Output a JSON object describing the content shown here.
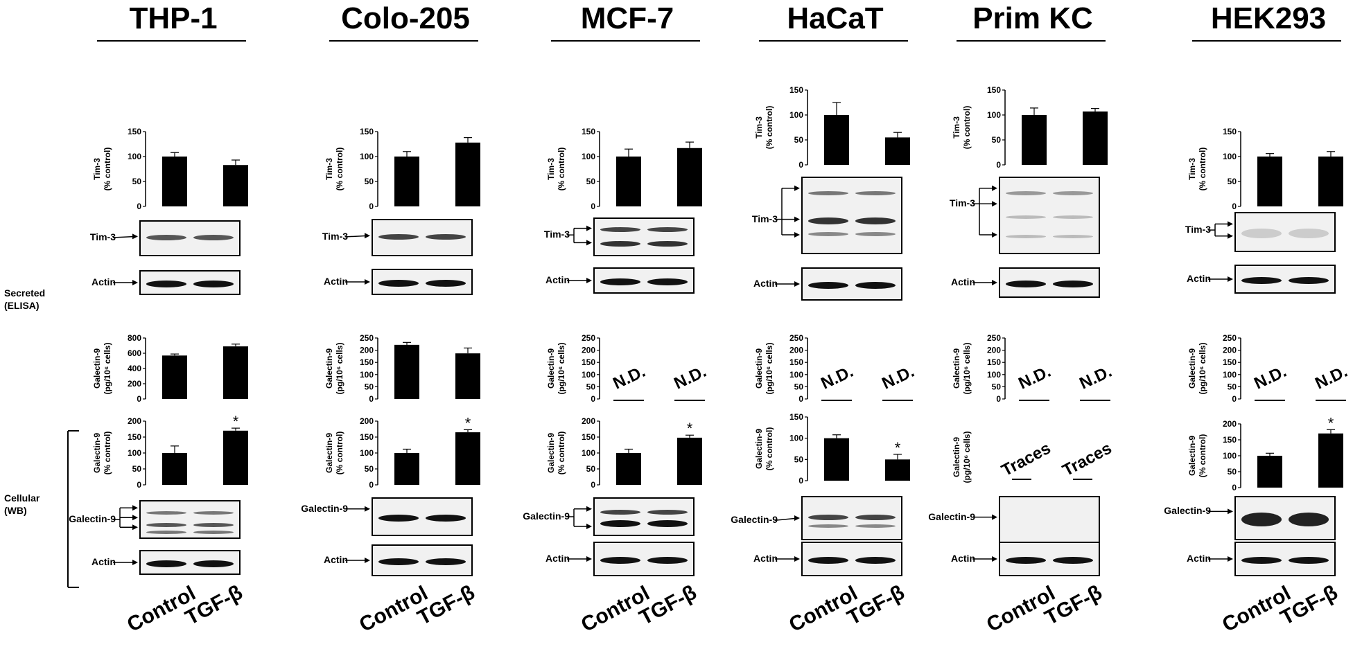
{
  "panels": [
    {
      "cell_line": "THP-1",
      "tim3_chart": {
        "ylabel": [
          "Tim-3",
          "(% control)"
        ],
        "ylim": [
          0,
          150
        ],
        "ticks": [
          "0",
          "50",
          "100",
          "150"
        ],
        "values": [
          100,
          83
        ],
        "errors": [
          8,
          10
        ]
      },
      "tim3_blot_label": "Tim-3",
      "actin_label_1": "Actin",
      "secreted_chart": {
        "ylabel": [
          "Galectin-9",
          "(pg/10⁶ cells)"
        ],
        "ylim": [
          0,
          800
        ],
        "ticks": [
          "0",
          "200",
          "400",
          "600",
          "800"
        ],
        "values": [
          570,
          690
        ],
        "errors": [
          20,
          30
        ]
      },
      "cellular_chart": {
        "ylabel": [
          "Galectin-9",
          "(% control)"
        ],
        "ylim": [
          0,
          200
        ],
        "ticks": [
          "0",
          "50",
          "100",
          "150",
          "200"
        ],
        "values": [
          100,
          170
        ],
        "errors": [
          22,
          8
        ],
        "significance": [
          "",
          "*"
        ]
      },
      "gal9_blot_label": "Galectin-9",
      "actin_label_2": "Actin"
    },
    {
      "cell_line": "Colo-205",
      "tim3_chart": {
        "ylabel": [
          "Tim-3",
          "(% control)"
        ],
        "ylim": [
          0,
          150
        ],
        "ticks": [
          "0",
          "50",
          "100",
          "150"
        ],
        "values": [
          100,
          128
        ],
        "errors": [
          10,
          10
        ]
      },
      "tim3_blot_label": "Tim-3",
      "actin_label_1": "Actin",
      "secreted_chart": {
        "ylabel": [
          "Galectin-9",
          "(pg/10⁶ cells)"
        ],
        "ylim": [
          0,
          250
        ],
        "ticks": [
          "0",
          "50",
          "100",
          "150",
          "200",
          "250"
        ],
        "values": [
          222,
          187
        ],
        "errors": [
          10,
          22
        ]
      },
      "cellular_chart": {
        "ylabel": [
          "Galectin-9",
          "(% control)"
        ],
        "ylim": [
          0,
          200
        ],
        "ticks": [
          "0",
          "50",
          "100",
          "150",
          "200"
        ],
        "values": [
          100,
          165
        ],
        "errors": [
          12,
          8
        ],
        "significance": [
          "",
          "*"
        ]
      },
      "gal9_blot_label": "Galectin-9",
      "actin_label_2": "Actin"
    },
    {
      "cell_line": "MCF-7",
      "tim3_chart": {
        "ylabel": [
          "Tim-3",
          "(% control)"
        ],
        "ylim": [
          0,
          150
        ],
        "ticks": [
          "0",
          "50",
          "100",
          "150"
        ],
        "values": [
          100,
          117
        ],
        "errors": [
          15,
          12
        ]
      },
      "tim3_blot_label": "Tim-3",
      "actin_label_1": "Actin",
      "secreted_chart": {
        "ylabel": [
          "Galectin-9",
          "(pg/10⁶ cells)"
        ],
        "ylim": [
          0,
          250
        ],
        "ticks": [
          "0",
          "50",
          "100",
          "150",
          "200",
          "250"
        ],
        "values": [
          null,
          null
        ],
        "annotations": [
          "N.D.",
          "N.D."
        ]
      },
      "cellular_chart": {
        "ylabel": [
          "Galectin-9",
          "(% control)"
        ],
        "ylim": [
          0,
          200
        ],
        "ticks": [
          "0",
          "50",
          "100",
          "150",
          "200"
        ],
        "values": [
          100,
          148
        ],
        "errors": [
          12,
          8
        ],
        "significance": [
          "",
          "*"
        ]
      },
      "gal9_blot_label": "Galectin-9",
      "actin_label_2": "Actin"
    },
    {
      "cell_line": "HaCaT",
      "tim3_chart": {
        "ylabel": [
          "Tim-3",
          "(% control)"
        ],
        "ylim": [
          0,
          150
        ],
        "ticks": [
          "0",
          "50",
          "100",
          "150"
        ],
        "values": [
          100,
          55
        ],
        "errors": [
          25,
          10
        ]
      },
      "tim3_blot_label": "Tim-3",
      "actin_label_1": "Actin",
      "secreted_chart": {
        "ylabel": [
          "Galectin-9",
          "(pg/10⁶ cells)"
        ],
        "ylim": [
          0,
          250
        ],
        "ticks": [
          "0",
          "50",
          "100",
          "150",
          "200",
          "250"
        ],
        "values": [
          null,
          null
        ],
        "annotations": [
          "N.D.",
          "N.D."
        ]
      },
      "cellular_chart": {
        "ylabel": [
          "Galectin-9",
          "(% control)"
        ],
        "ylim": [
          0,
          150
        ],
        "ticks": [
          "0",
          "50",
          "100",
          "150"
        ],
        "values": [
          100,
          50
        ],
        "errors": [
          8,
          12
        ],
        "significance": [
          "",
          "*"
        ]
      },
      "gal9_blot_label": "Galectin-9",
      "actin_label_2": "Actin"
    },
    {
      "cell_line": "Prim KC",
      "tim3_chart": {
        "ylabel": [
          "Tim-3",
          "(% control)"
        ],
        "ylim": [
          0,
          150
        ],
        "ticks": [
          "0",
          "50",
          "100",
          "150"
        ],
        "values": [
          100,
          107
        ],
        "errors": [
          14,
          6
        ]
      },
      "tim3_blot_label": "Tim-3",
      "actin_label_1": "Actin",
      "secreted_chart": {
        "ylabel": [
          "Galectin-9",
          "(pg/10⁶ cells)"
        ],
        "ylim": [
          0,
          250
        ],
        "ticks": [
          "0",
          "50",
          "100",
          "150",
          "200",
          "250"
        ],
        "values": [
          null,
          null
        ],
        "annotations": [
          "N.D.",
          "N.D."
        ]
      },
      "cellular_chart": {
        "ylabel": [
          "Galectin-9",
          "(pg/10⁶ cells)"
        ],
        "values": [
          null,
          null
        ],
        "annotations": [
          "Traces",
          "Traces"
        ]
      },
      "gal9_blot_label": "Galectin-9",
      "actin_label_2": "Actin"
    },
    {
      "cell_line": "HEK293",
      "tim3_chart": {
        "ylabel": [
          "Tim-3",
          "(% control)"
        ],
        "ylim": [
          0,
          150
        ],
        "ticks": [
          "0",
          "50",
          "100",
          "150"
        ],
        "values": [
          100,
          100
        ],
        "errors": [
          6,
          10
        ]
      },
      "tim3_blot_label": "Tim-3",
      "actin_label_1": "Actin",
      "secreted_chart": {
        "ylabel": [
          "Galectin-9",
          "(pg/10⁶ cells)"
        ],
        "ylim": [
          0,
          250
        ],
        "ticks": [
          "0",
          "50",
          "100",
          "150",
          "200",
          "250"
        ],
        "values": [
          null,
          null
        ],
        "annotations": [
          "N.D.",
          "N.D."
        ]
      },
      "cellular_chart": {
        "ylabel": [
          "Galectin-9",
          "(% control)"
        ],
        "ylim": [
          0,
          200
        ],
        "ticks": [
          "0",
          "50",
          "100",
          "150",
          "200"
        ],
        "values": [
          100,
          170
        ],
        "errors": [
          8,
          12
        ],
        "significance": [
          "",
          "*"
        ]
      },
      "gal9_blot_label": "Galectin-9",
      "actin_label_2": "Actin"
    }
  ],
  "row_labels": {
    "secreted": "Secreted",
    "secreted_sub": "(ELISA)",
    "cellular": "Cellular",
    "cellular_sub": "(WB)"
  },
  "x_labels": [
    "Control",
    "TGF-β"
  ],
  "chart_data": [
    {
      "type": "bar",
      "title": "THP-1",
      "ylabel": "Tim-3 (% control)",
      "categories": [
        "Control",
        "TGF-β"
      ],
      "values": [
        100,
        83
      ],
      "ylim": [
        0,
        150
      ]
    },
    {
      "type": "bar",
      "title": "THP-1",
      "ylabel": "Galectin-9 (pg/10⁶ cells)",
      "categories": [
        "Control",
        "TGF-β"
      ],
      "values": [
        570,
        690
      ],
      "ylim": [
        0,
        800
      ]
    },
    {
      "type": "bar",
      "title": "THP-1",
      "ylabel": "Galectin-9 (% control)",
      "categories": [
        "Control",
        "TGF-β"
      ],
      "values": [
        100,
        170
      ],
      "ylim": [
        0,
        200
      ]
    },
    {
      "type": "bar",
      "title": "Colo-205",
      "ylabel": "Tim-3 (% control)",
      "categories": [
        "Control",
        "TGF-β"
      ],
      "values": [
        100,
        128
      ],
      "ylim": [
        0,
        150
      ]
    },
    {
      "type": "bar",
      "title": "Colo-205",
      "ylabel": "Galectin-9 (pg/10⁶ cells)",
      "categories": [
        "Control",
        "TGF-β"
      ],
      "values": [
        222,
        187
      ],
      "ylim": [
        0,
        250
      ]
    },
    {
      "type": "bar",
      "title": "Colo-205",
      "ylabel": "Galectin-9 (% control)",
      "categories": [
        "Control",
        "TGF-β"
      ],
      "values": [
        100,
        165
      ],
      "ylim": [
        0,
        200
      ]
    },
    {
      "type": "bar",
      "title": "MCF-7",
      "ylabel": "Tim-3 (% control)",
      "categories": [
        "Control",
        "TGF-β"
      ],
      "values": [
        100,
        117
      ],
      "ylim": [
        0,
        150
      ]
    },
    {
      "type": "bar",
      "title": "MCF-7",
      "ylabel": "Galectin-9 (% control)",
      "categories": [
        "Control",
        "TGF-β"
      ],
      "values": [
        100,
        148
      ],
      "ylim": [
        0,
        200
      ]
    },
    {
      "type": "bar",
      "title": "HaCaT",
      "ylabel": "Tim-3 (% control)",
      "categories": [
        "Control",
        "TGF-β"
      ],
      "values": [
        100,
        55
      ],
      "ylim": [
        0,
        150
      ]
    },
    {
      "type": "bar",
      "title": "HaCaT",
      "ylabel": "Galectin-9 (% control)",
      "categories": [
        "Control",
        "TGF-β"
      ],
      "values": [
        100,
        50
      ],
      "ylim": [
        0,
        150
      ]
    },
    {
      "type": "bar",
      "title": "Prim KC",
      "ylabel": "Tim-3 (% control)",
      "categories": [
        "Control",
        "TGF-β"
      ],
      "values": [
        100,
        107
      ],
      "ylim": [
        0,
        150
      ]
    },
    {
      "type": "bar",
      "title": "HEK293",
      "ylabel": "Tim-3 (% control)",
      "categories": [
        "Control",
        "TGF-β"
      ],
      "values": [
        100,
        100
      ],
      "ylim": [
        0,
        150
      ]
    },
    {
      "type": "bar",
      "title": "HEK293",
      "ylabel": "Galectin-9 (% control)",
      "categories": [
        "Control",
        "TGF-β"
      ],
      "values": [
        100,
        170
      ],
      "ylim": [
        0,
        200
      ]
    }
  ]
}
